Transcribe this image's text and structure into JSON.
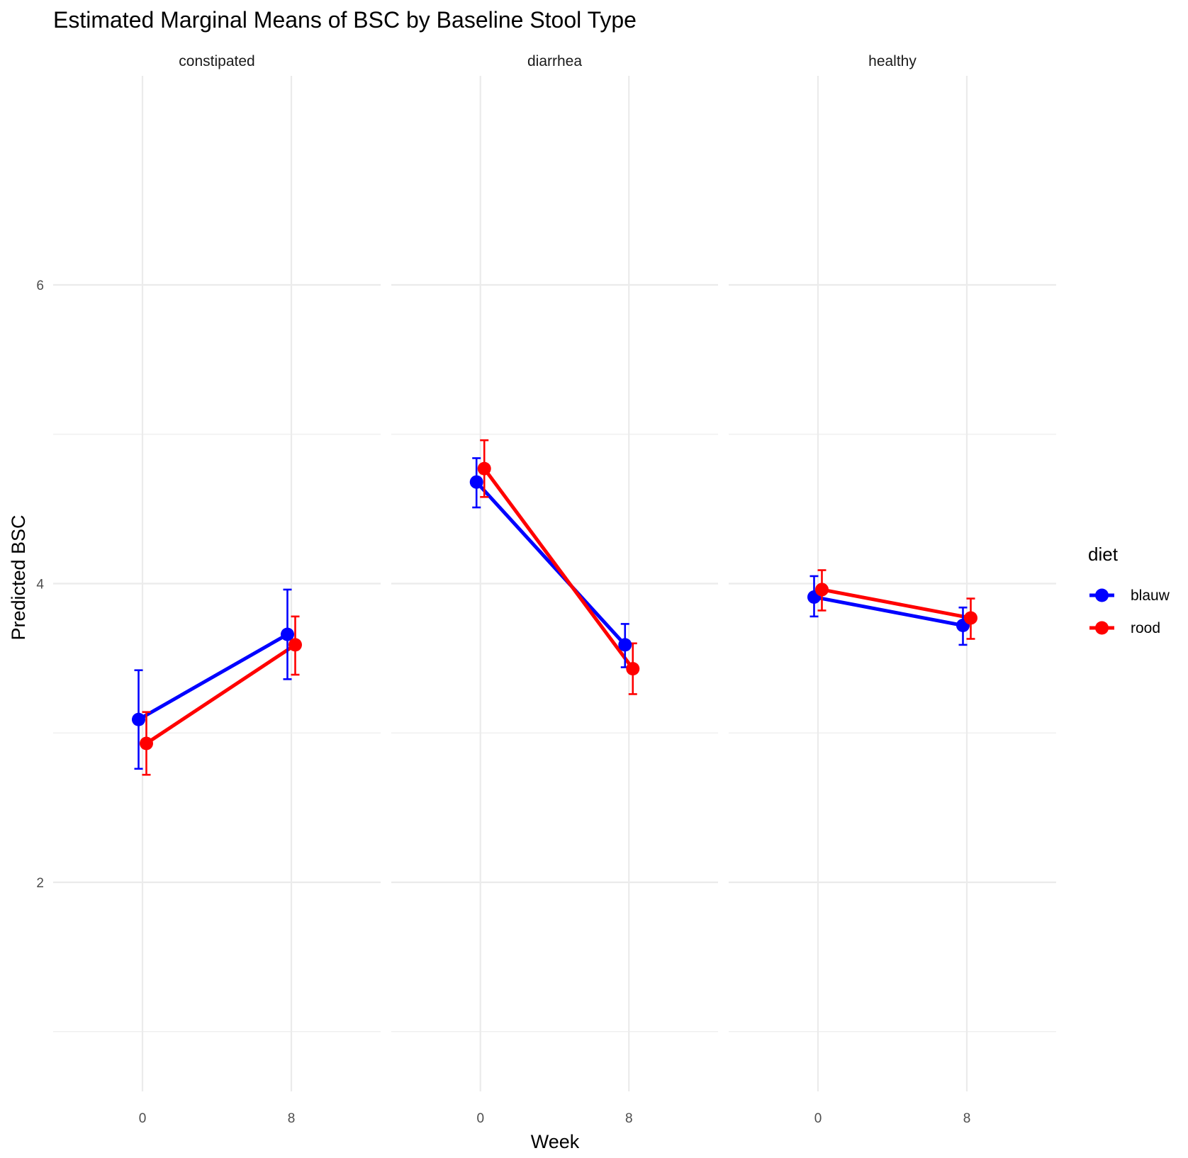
{
  "chart_data": {
    "type": "line",
    "title": "Estimated Marginal Means of BSC by Baseline Stool Type",
    "xlabel": "Week",
    "ylabel": "Predicted BSC",
    "x_ticks": [
      "0",
      "8"
    ],
    "ylim": [
      0.6,
      7.4
    ],
    "y_ticks": [
      2,
      4,
      6
    ],
    "y_minor": [
      1,
      3,
      5
    ],
    "grid": true,
    "legend": {
      "title": "diet",
      "position": "right"
    },
    "facets": [
      "constipated",
      "diarrhea",
      "healthy"
    ],
    "series": [
      {
        "name": "blauw",
        "color": "#0000ff",
        "points": {
          "constipated": [
            {
              "week": "0",
              "y": 3.09,
              "lo": 2.76,
              "hi": 3.42
            },
            {
              "week": "8",
              "y": 3.66,
              "lo": 3.36,
              "hi": 3.96
            }
          ],
          "diarrhea": [
            {
              "week": "0",
              "y": 4.68,
              "lo": 4.51,
              "hi": 4.84
            },
            {
              "week": "8",
              "y": 3.59,
              "lo": 3.44,
              "hi": 3.73
            }
          ],
          "healthy": [
            {
              "week": "0",
              "y": 3.91,
              "lo": 3.78,
              "hi": 4.05
            },
            {
              "week": "8",
              "y": 3.72,
              "lo": 3.59,
              "hi": 3.84
            }
          ]
        }
      },
      {
        "name": "rood",
        "color": "#ff0000",
        "points": {
          "constipated": [
            {
              "week": "0",
              "y": 2.93,
              "lo": 2.72,
              "hi": 3.14
            },
            {
              "week": "8",
              "y": 3.59,
              "lo": 3.39,
              "hi": 3.78
            }
          ],
          "diarrhea": [
            {
              "week": "0",
              "y": 4.77,
              "lo": 4.58,
              "hi": 4.96
            },
            {
              "week": "8",
              "y": 3.43,
              "lo": 3.26,
              "hi": 3.6
            }
          ],
          "healthy": [
            {
              "week": "0",
              "y": 3.96,
              "lo": 3.82,
              "hi": 4.09
            },
            {
              "week": "8",
              "y": 3.77,
              "lo": 3.63,
              "hi": 3.9
            }
          ]
        }
      }
    ]
  }
}
